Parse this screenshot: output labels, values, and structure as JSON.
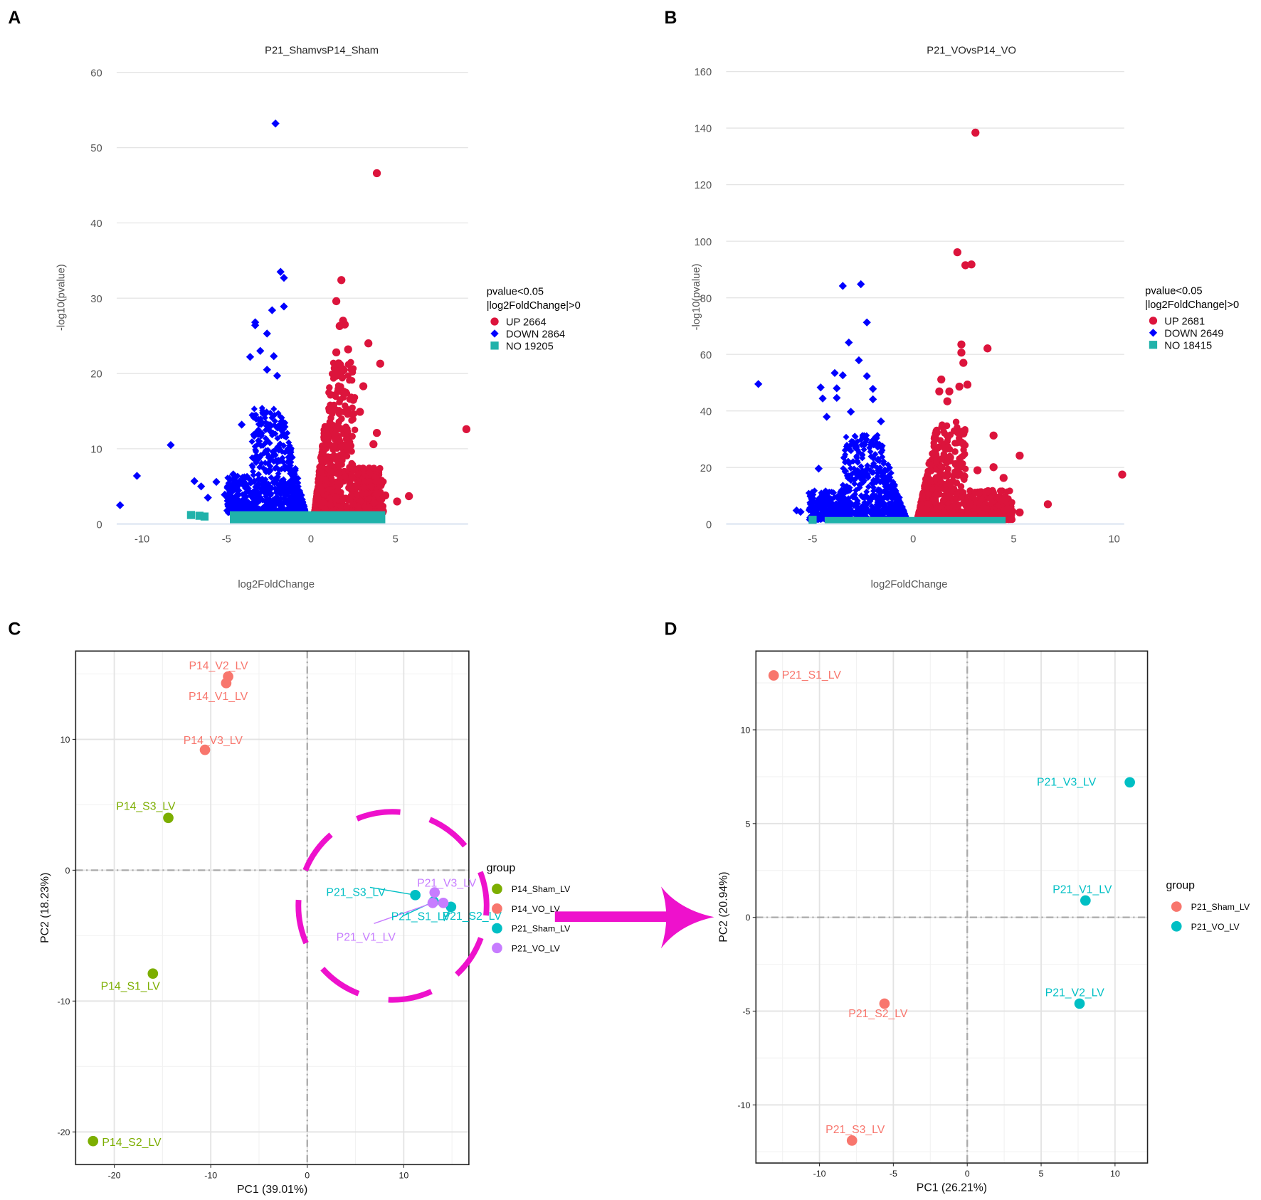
{
  "figure": {
    "letters": [
      "A",
      "B",
      "C",
      "D"
    ]
  },
  "colors": {
    "up": "#dc143c",
    "down": "#0000ff",
    "no": "#20b2aa",
    "grid": "#e4e4e4",
    "highlight": "#ee11cc",
    "p14_sham": "#7cae00",
    "p14_vo": "#f8766d",
    "p21_sham": "#00bfc4",
    "p21_vo": "#c77cff"
  },
  "chart_data": [
    {
      "type": "scatter",
      "title": "P21_ShamvsP14_Sham",
      "xlabel": "log2FoldChange",
      "ylabel": "-log10(pvalue)",
      "xlim": [
        -11.5,
        9.3
      ],
      "ylim": [
        0,
        60
      ],
      "xticks": [
        -10,
        -5,
        0,
        5
      ],
      "yticks": [
        0,
        10,
        20,
        30,
        40,
        50,
        60
      ],
      "legend": {
        "title_line1": "pvalue<0.05",
        "title_line2": "|log2FoldChange|>0",
        "placement": "right",
        "entries": [
          {
            "label": "UP 2664",
            "key": "up"
          },
          {
            "label": "DOWN 2864",
            "key": "down"
          },
          {
            "label": "NO 19205",
            "key": "no"
          }
        ]
      },
      "counts": {
        "up": 2664,
        "down": 2864,
        "no": 19205
      },
      "cloud": {
        "down_x": [
          -5,
          -0.3
        ],
        "down_ymax": 14,
        "up_x": [
          0.2,
          4.3
        ],
        "up_ymax": 20,
        "no_x": [
          -4.8,
          4.4
        ],
        "no_ymax": 1.7
      },
      "outliers": {
        "down": [
          [
            -2.1,
            53.2
          ],
          [
            -1.8,
            33.5
          ],
          [
            -1.6,
            32.7
          ],
          [
            -1.6,
            28.9
          ],
          [
            -2.3,
            28.4
          ],
          [
            -3.3,
            26.8
          ],
          [
            -3.3,
            26.4
          ],
          [
            -2.6,
            25.3
          ],
          [
            -3.0,
            23.0
          ],
          [
            -3.6,
            22.2
          ],
          [
            -2.2,
            22.3
          ],
          [
            -2.6,
            20.5
          ],
          [
            -2.0,
            19.7
          ],
          [
            -8.3,
            10.5
          ],
          [
            -10.3,
            6.4
          ],
          [
            -11.3,
            2.5
          ],
          [
            -6.9,
            5.7
          ],
          [
            -6.5,
            5.0
          ],
          [
            -5.6,
            5.6
          ],
          [
            -4.6,
            6.6
          ],
          [
            -5.1,
            3.9
          ],
          [
            -4.5,
            5.2
          ],
          [
            -6.1,
            3.5
          ],
          [
            -4.1,
            13.2
          ]
        ],
        "up": [
          [
            3.9,
            46.6
          ],
          [
            1.8,
            32.4
          ],
          [
            1.5,
            29.6
          ],
          [
            1.9,
            27.0
          ],
          [
            2.0,
            26.5
          ],
          [
            1.7,
            26.3
          ],
          [
            3.4,
            24.0
          ],
          [
            4.1,
            21.3
          ],
          [
            2.2,
            23.2
          ],
          [
            1.5,
            22.8
          ],
          [
            3.1,
            18.3
          ],
          [
            2.5,
            16.5
          ],
          [
            2.9,
            14.9
          ],
          [
            3.9,
            12.1
          ],
          [
            3.7,
            10.6
          ],
          [
            9.2,
            12.6
          ],
          [
            5.8,
            3.7
          ],
          [
            5.1,
            3.0
          ],
          [
            3.9,
            4.0
          ],
          [
            4.4,
            3.8
          ]
        ],
        "no": [
          [
            -7.1,
            1.2
          ],
          [
            -6.6,
            1.1
          ],
          [
            -6.3,
            1.0
          ]
        ]
      }
    },
    {
      "type": "scatter",
      "title": "P21_VOvsP14_VO",
      "xlabel": "log2FoldChange",
      "ylabel": "-log10(pvalue)",
      "xlim": [
        -9.3,
        10.5
      ],
      "ylim": [
        0,
        160
      ],
      "xticks": [
        -5,
        0,
        5,
        10
      ],
      "yticks": [
        0,
        20,
        40,
        60,
        80,
        100,
        120,
        140,
        160
      ],
      "legend": {
        "title_line1": "pvalue<0.05",
        "title_line2": "|log2FoldChange|>0",
        "placement": "right",
        "entries": [
          {
            "label": "UP 2681",
            "key": "up"
          },
          {
            "label": "DOWN 2649",
            "key": "down"
          },
          {
            "label": "NO 18415",
            "key": "no"
          }
        ]
      },
      "counts": {
        "up": 2681,
        "down": 2649,
        "no": 18415
      },
      "cloud": {
        "down_x": [
          -5.2,
          -0.3
        ],
        "down_ymax": 30,
        "up_x": [
          0.2,
          5
        ],
        "up_ymax": 35,
        "no_x": [
          -4.4,
          4.6
        ],
        "no_ymax": 2.5
      },
      "outliers": {
        "down": [
          [
            -7.7,
            49.5
          ],
          [
            -3.5,
            84.2
          ],
          [
            -2.6,
            84.8
          ],
          [
            -2.3,
            71.3
          ],
          [
            -3.2,
            64.2
          ],
          [
            -2.7,
            57.9
          ],
          [
            -3.9,
            53.4
          ],
          [
            -3.5,
            52.6
          ],
          [
            -2.3,
            52.3
          ],
          [
            -4.6,
            48.3
          ],
          [
            -3.8,
            48.0
          ],
          [
            -2.0,
            47.8
          ],
          [
            -4.5,
            44.4
          ],
          [
            -3.8,
            44.6
          ],
          [
            -2.0,
            44.1
          ],
          [
            -4.3,
            37.9
          ],
          [
            -5.1,
            9.8
          ],
          [
            -5.8,
            4.8
          ],
          [
            -5.6,
            4.3
          ],
          [
            -4.7,
            19.6
          ],
          [
            -3.1,
            39.7
          ],
          [
            -1.6,
            36.3
          ],
          [
            -4.4,
            10.5
          ]
        ],
        "up": [
          [
            3.1,
            138.4
          ],
          [
            2.2,
            96.1
          ],
          [
            2.6,
            91.5
          ],
          [
            2.9,
            91.8
          ],
          [
            2.4,
            63.5
          ],
          [
            2.4,
            60.6
          ],
          [
            2.5,
            57.0
          ],
          [
            3.7,
            62.1
          ],
          [
            1.4,
            51.1
          ],
          [
            2.7,
            49.3
          ],
          [
            2.3,
            48.6
          ],
          [
            1.3,
            46.9
          ],
          [
            1.8,
            46.9
          ],
          [
            4.0,
            31.3
          ],
          [
            5.3,
            24.2
          ],
          [
            4.0,
            20.1
          ],
          [
            4.5,
            16.3
          ],
          [
            3.2,
            19.0
          ],
          [
            10.4,
            17.5
          ],
          [
            6.7,
            7.0
          ],
          [
            4.7,
            5.3
          ],
          [
            5.3,
            4.1
          ],
          [
            1.7,
            43.4
          ],
          [
            2.5,
            32.0
          ]
        ],
        "no": [
          [
            -5.0,
            1.5
          ]
        ]
      }
    },
    {
      "type": "scatter",
      "title": "",
      "xlabel": "PC1 (39.01%)",
      "ylabel": "PC2 (18.23%)",
      "xlim": [
        -24,
        16.75
      ],
      "ylim": [
        -22.5,
        16.75
      ],
      "xticks": [
        -20,
        -10,
        0,
        10
      ],
      "yticks": [
        -20,
        -10,
        0,
        10
      ],
      "legend": {
        "title": "group",
        "placement": "right",
        "entries": [
          {
            "label": "P14_Sham_LV",
            "key": "p14_sham"
          },
          {
            "label": "P14_VO_LV",
            "key": "p14_vo"
          },
          {
            "label": "P21_Sham_LV",
            "key": "p21_sham"
          },
          {
            "label": "P21_VO_LV",
            "key": "p21_vo"
          }
        ]
      },
      "points": [
        {
          "label": "P14_V2_LV",
          "group": "p14_vo",
          "x": -8.2,
          "y": 14.8
        },
        {
          "label": "P14_V1_LV",
          "group": "p14_vo",
          "x": -8.4,
          "y": 14.3
        },
        {
          "label": "P14_V3_LV",
          "group": "p14_vo",
          "x": -10.6,
          "y": 9.2
        },
        {
          "label": "P14_S3_LV",
          "group": "p14_sham",
          "x": -14.4,
          "y": 4.0
        },
        {
          "label": "P14_S1_LV",
          "group": "p14_sham",
          "x": -16.0,
          "y": -7.9
        },
        {
          "label": "P14_S2_LV",
          "group": "p14_sham",
          "x": -22.2,
          "y": -20.7
        },
        {
          "label": "P21_S3_LV",
          "group": "p21_sham",
          "x": 11.2,
          "y": -1.9
        },
        {
          "label": "P21_S1_LV",
          "group": "p21_sham",
          "x": 13.1,
          "y": -2.4
        },
        {
          "label": "P21_S2_LV",
          "group": "p21_sham",
          "x": 14.9,
          "y": -2.8
        },
        {
          "label": "P21_V3_LV",
          "group": "p21_vo",
          "x": 13.2,
          "y": -1.7
        },
        {
          "label": "P21_V1_LV",
          "group": "p21_vo",
          "x": 13.0,
          "y": -2.5
        },
        {
          "label": "",
          "group": "p21_vo",
          "x": 14.1,
          "y": -2.5
        }
      ]
    },
    {
      "type": "scatter",
      "title": "",
      "xlabel": "PC1 (26.21%)",
      "ylabel": "PC2 (20.94%)",
      "xlim": [
        -14.3,
        12.2
      ],
      "ylim": [
        -13.1,
        14.2
      ],
      "xticks": [
        -10,
        -5,
        0,
        5,
        10
      ],
      "yticks": [
        -10,
        -5,
        0,
        5,
        10
      ],
      "legend": {
        "title": "group",
        "placement": "right",
        "entries": [
          {
            "label": "P21_Sham_LV",
            "key": "p14_vo"
          },
          {
            "label": "P21_VO_LV",
            "key": "p21_sham"
          }
        ]
      },
      "points": [
        {
          "label": "P21_S1_LV",
          "group": "p14_vo",
          "x": -13.1,
          "y": 12.9
        },
        {
          "label": "P21_S2_LV",
          "group": "p14_vo",
          "x": -5.6,
          "y": -4.6
        },
        {
          "label": "P21_S3_LV",
          "group": "p14_vo",
          "x": -7.8,
          "y": -11.9
        },
        {
          "label": "P21_V3_LV",
          "group": "p21_sham",
          "x": 11.0,
          "y": 7.2
        },
        {
          "label": "P21_V1_LV",
          "group": "p21_sham",
          "x": 8.0,
          "y": 0.9
        },
        {
          "label": "P21_V2_LV",
          "group": "p21_sham",
          "x": 7.6,
          "y": -4.6
        }
      ]
    }
  ]
}
